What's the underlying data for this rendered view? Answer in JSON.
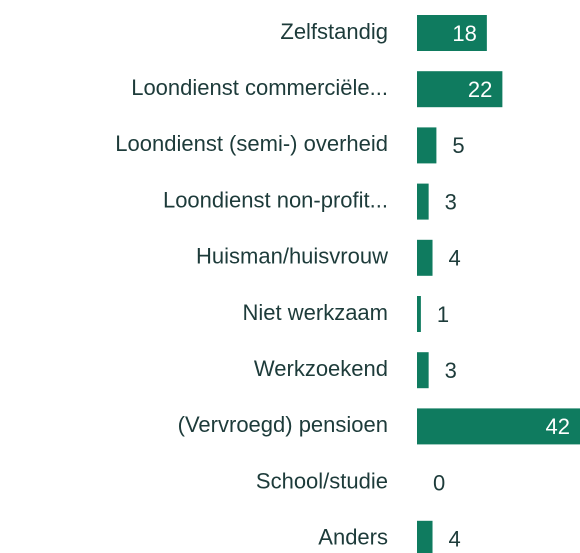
{
  "chart_data": {
    "type": "bar",
    "orientation": "horizontal",
    "categories": [
      "Zelfstandig",
      "Loondienst commerciële...",
      "Loondienst (semi-) overheid",
      "Loondienst non-profit...",
      "Huisman/huisvrouw",
      "Niet werkzaam",
      "Werkzoekend",
      "(Vervroegd) pensioen",
      "School/studie",
      "Anders"
    ],
    "values": [
      18,
      22,
      5,
      3,
      4,
      1,
      3,
      42,
      0,
      4
    ],
    "color": "#0f7b5f"
  }
}
